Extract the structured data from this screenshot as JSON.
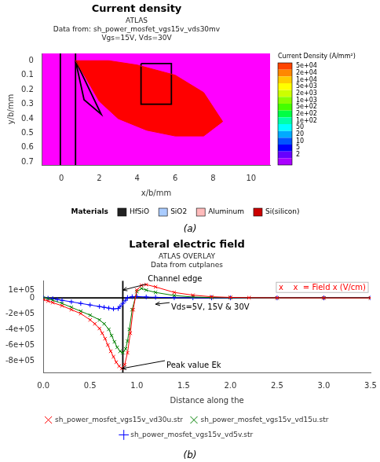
{
  "chart_data": [
    {
      "type": "line",
      "title": "Current density",
      "subtitle": [
        "ATLAS",
        "Data from: sh_power_mosfet_vgs15v_vds30mv",
        "Vgs=15V, Vds=30V"
      ],
      "xlabel": "x/b/mm",
      "ylabel": "y/b/mm",
      "xlim": [
        -1,
        11
      ],
      "ylim": [
        0.72,
        -0.05
      ],
      "xticks": [
        0,
        2,
        4,
        6,
        8,
        10
      ],
      "yticks": [
        0,
        0.1,
        0.2,
        0.3,
        0.4,
        0.5,
        0.6,
        0.7
      ],
      "grid": false,
      "background": "#ff00ff",
      "series": [
        {
          "type": "area",
          "color": "red",
          "x": [
            0.75,
            1.0,
            1.5,
            2.5,
            4.0,
            6.0,
            7.5,
            8.5,
            7.5,
            6.0,
            4.5,
            3.0,
            2.0,
            1.3,
            0.75
          ],
          "values": [
            0.0,
            0.0,
            0.0,
            0.0,
            0.03,
            0.1,
            0.22,
            0.42,
            0.52,
            0.52,
            0.48,
            0.4,
            0.28,
            0.12,
            0.0
          ]
        },
        {
          "type": "line",
          "color": "black",
          "x": [
            0.75,
            1.2,
            2.1,
            0.75
          ],
          "values": [
            0.0,
            0.27,
            0.37,
            0.0
          ]
        },
        {
          "type": "line",
          "color": "black",
          "x": [
            0.75,
            0.75
          ],
          "values": [
            -0.05,
            0.72
          ]
        },
        {
          "type": "line",
          "color": "black",
          "x": [
            -0.05,
            -0.05
          ],
          "values": [
            -0.05,
            0.72
          ]
        },
        {
          "type": "line",
          "color": "black",
          "x": [
            4.2,
            5.8,
            5.8,
            4.2,
            4.2
          ],
          "values": [
            0.02,
            0.02,
            0.3,
            0.3,
            0.02
          ]
        }
      ],
      "colorbar": {
        "title": "Current Density (A/mm²)",
        "colors": [
          "#ff4400",
          "#ff8800",
          "#ffcc00",
          "#ffff00",
          "#ccff00",
          "#88ff00",
          "#44ff00",
          "#00ff44",
          "#00ffaa",
          "#00ffff",
          "#00aaff",
          "#0055ff",
          "#0000ff",
          "#6600ff",
          "#aa00ff"
        ],
        "ticks": [
          {
            "value": 50000,
            "label": "5e+04"
          },
          {
            "value": 20000,
            "label": "2e+04"
          },
          {
            "value": 10000,
            "label": "1e+04"
          },
          {
            "value": 5000,
            "label": "5e+03"
          },
          {
            "value": 2000,
            "label": "2e+03"
          },
          {
            "value": 1000,
            "label": "1e+03"
          },
          {
            "value": 500,
            "label": "5e+02"
          },
          {
            "value": 200,
            "label": "2e+02"
          },
          {
            "value": 100,
            "label": "1e+02"
          },
          50,
          20,
          10,
          5,
          2,
          null
        ]
      },
      "materials": {
        "title": "Materials",
        "names": [
          "HfSiO",
          "SiO2",
          "Aluminum",
          "Si(silicon)"
        ],
        "colors": [
          "#222222",
          "#aaccff",
          "#ffbbbb",
          "#cc0000"
        ]
      },
      "caption": "(a)"
    },
    {
      "type": "line",
      "title": "Lateral electric field",
      "subtitle": [
        "ATLAS OVERLAY",
        "Data from cutplanes"
      ],
      "xlabel": "Distance along the",
      "xlim": [
        0,
        3.5
      ],
      "ylim": [
        -950000,
        220000
      ],
      "xticks": [
        {
          "value": 0,
          "label": "0.0"
        },
        0.5,
        {
          "value": 1.0,
          "label": "1.0"
        },
        1.5,
        {
          "value": 2.0,
          "label": "2.0"
        },
        2.5,
        {
          "value": 3.0,
          "label": "3.0"
        },
        3.5
      ],
      "yticks": [
        {
          "value": -800000,
          "label": "-8e+05"
        },
        {
          "value": -600000,
          "label": "-6e+05"
        },
        {
          "value": -400000,
          "label": "-4e+05"
        },
        {
          "value": -200000,
          "label": "-2e+05"
        },
        0,
        {
          "value": 100000,
          "label": "1e+05"
        }
      ],
      "grid": false,
      "legend": "bottom",
      "series": [
        {
          "name": "sh_power_mosfet_vgs15v_vd30u.str",
          "color": "red",
          "marker": "x",
          "x": [
            0.0,
            0.05,
            0.1,
            0.2,
            0.3,
            0.4,
            0.5,
            0.55,
            0.6,
            0.63,
            0.66,
            0.69,
            0.72,
            0.75,
            0.78,
            0.81,
            0.84,
            0.87,
            0.9,
            0.93,
            0.96,
            1.0,
            1.05,
            1.1,
            1.2,
            1.4,
            1.6,
            1.8,
            2.0,
            2.2,
            2.5,
            3.0,
            3.5
          ],
          "values": [
            -20000,
            -40000,
            -60000,
            -100000,
            -150000,
            -200000,
            -280000,
            -330000,
            -390000,
            -450000,
            -520000,
            -600000,
            -680000,
            -750000,
            -820000,
            -870000,
            -900000,
            -850000,
            -700000,
            -450000,
            -150000,
            100000,
            160000,
            170000,
            140000,
            70000,
            35000,
            15000,
            7000,
            3000,
            1000,
            0,
            0
          ]
        },
        {
          "name": "sh_power_mosfet_vgs15v_vd15u.str",
          "color": "green",
          "marker": "x",
          "x": [
            0.0,
            0.05,
            0.1,
            0.2,
            0.3,
            0.4,
            0.5,
            0.6,
            0.65,
            0.7,
            0.73,
            0.76,
            0.79,
            0.82,
            0.85,
            0.88,
            0.9,
            0.92,
            0.95,
            1.0,
            1.05,
            1.1,
            1.2,
            1.4,
            1.6,
            1.8,
            2.0,
            2.5,
            3.0,
            3.5
          ],
          "values": [
            0,
            -10000,
            -30000,
            -70000,
            -120000,
            -170000,
            -220000,
            -280000,
            -330000,
            -400000,
            -480000,
            -560000,
            -630000,
            -680000,
            -700000,
            -650000,
            -550000,
            -400000,
            -150000,
            80000,
            120000,
            100000,
            70000,
            30000,
            12000,
            5000,
            2000,
            0,
            0,
            0
          ]
        },
        {
          "name": "sh_power_mosfet_vgs15v_vd5v.str",
          "color": "blue",
          "marker": "+",
          "x": [
            0.0,
            0.05,
            0.1,
            0.15,
            0.2,
            0.3,
            0.4,
            0.5,
            0.6,
            0.65,
            0.7,
            0.75,
            0.8,
            0.82,
            0.85,
            0.88,
            0.9,
            0.95,
            1.0,
            1.1,
            1.2,
            1.4,
            1.6,
            1.8,
            2.0,
            2.5,
            3.0,
            3.5
          ],
          "values": [
            0,
            -5000,
            -10000,
            -20000,
            -30000,
            -50000,
            -70000,
            -90000,
            -110000,
            -120000,
            -130000,
            -140000,
            -135000,
            -110000,
            -70000,
            -30000,
            5000,
            15000,
            18000,
            12000,
            8000,
            3000,
            1000,
            500,
            0,
            0,
            0,
            0
          ]
        },
        {
          "type": "line",
          "color": "black",
          "x": [
            0,
            3.5
          ],
          "values": [
            0,
            0
          ]
        },
        {
          "type": "line",
          "color": "black",
          "x": [
            0.85,
            0.85
          ],
          "values": [
            -950000,
            220000
          ]
        }
      ],
      "annotations": [
        {
          "text": "Channel edge",
          "x": 0.85,
          "y": 100000,
          "text_x": 1.1,
          "text_y": 175000
        },
        {
          "text": "Vds=5V, 15V & 30V",
          "x": 1.2,
          "y": -80000,
          "text_x": 1.35,
          "text_y": -60000
        },
        {
          "text": "Peak value Ek",
          "x": 0.84,
          "y": -900000,
          "text_x": 1.3,
          "text_y": -800000
        },
        {
          "text": "x    x  = Field x (V/cm)",
          "color": "red"
        }
      ],
      "caption": "(b)"
    }
  ]
}
